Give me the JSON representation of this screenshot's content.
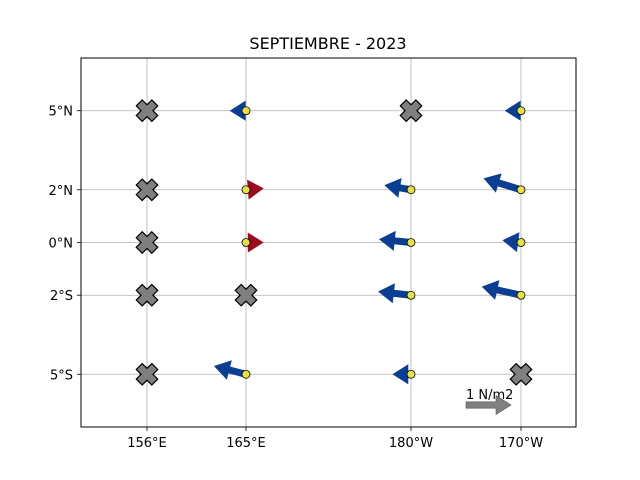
{
  "chart_data": {
    "type": "quiver",
    "title": "SEPTIEMBRE - 2023",
    "xlabel": "",
    "ylabel": "",
    "x_ticks": [
      {
        "lon": 156,
        "label": "156°E"
      },
      {
        "lon": 165,
        "label": "165°E"
      },
      {
        "lon": 180,
        "label": "180°W"
      },
      {
        "lon": 190,
        "label": "170°W"
      }
    ],
    "y_ticks": [
      {
        "lat": 5,
        "label": "5°N"
      },
      {
        "lat": 2,
        "label": "2°N"
      },
      {
        "lat": 0,
        "label": "0°N"
      },
      {
        "lat": -2,
        "label": "2°S"
      },
      {
        "lat": -5,
        "label": "5°S"
      }
    ],
    "xlim": [
      150,
      195
    ],
    "ylim": [
      -7,
      7
    ],
    "grid": true,
    "reference_vector": {
      "label": "1 N/m2",
      "magnitude": 1,
      "color": "#808080"
    },
    "colors": {
      "westward": "#0b3e91",
      "eastward": "#990a1e",
      "station_marker": "#e8e04a",
      "missing_marker": "#7f7f7f"
    },
    "stations": [
      {
        "lon": 156,
        "lat": 5,
        "missing": true
      },
      {
        "lon": 156,
        "lat": 2,
        "missing": true
      },
      {
        "lon": 156,
        "lat": 0,
        "missing": true
      },
      {
        "lon": 156,
        "lat": -2,
        "missing": true
      },
      {
        "lon": 156,
        "lat": -5,
        "missing": true
      },
      {
        "lon": 165,
        "lat": 5,
        "missing": false,
        "u": -0.35,
        "v": 0.0
      },
      {
        "lon": 165,
        "lat": 2,
        "missing": false,
        "u": 0.38,
        "v": 0.03
      },
      {
        "lon": 165,
        "lat": 0,
        "missing": false,
        "u": 0.38,
        "v": 0.0
      },
      {
        "lon": 165,
        "lat": -2,
        "missing": true
      },
      {
        "lon": 165,
        "lat": -5,
        "missing": false,
        "u": -0.7,
        "v": 0.18
      },
      {
        "lon": 180,
        "lat": 5,
        "missing": true
      },
      {
        "lon": 180,
        "lat": 2,
        "missing": false,
        "u": -0.58,
        "v": 0.1
      },
      {
        "lon": 180,
        "lat": 0,
        "missing": false,
        "u": -0.7,
        "v": 0.07
      },
      {
        "lon": 180,
        "lat": -2,
        "missing": false,
        "u": -0.72,
        "v": 0.08
      },
      {
        "lon": 180,
        "lat": -5,
        "missing": false,
        "u": -0.4,
        "v": 0.0
      },
      {
        "lon": 190,
        "lat": 5,
        "missing": false,
        "u": -0.35,
        "v": 0.0
      },
      {
        "lon": 190,
        "lat": 2,
        "missing": false,
        "u": -0.82,
        "v": 0.25
      },
      {
        "lon": 190,
        "lat": 0,
        "missing": false,
        "u": -0.4,
        "v": 0.05
      },
      {
        "lon": 190,
        "lat": -2,
        "missing": false,
        "u": -0.86,
        "v": 0.19
      },
      {
        "lon": 190,
        "lat": -5,
        "missing": true
      }
    ]
  }
}
